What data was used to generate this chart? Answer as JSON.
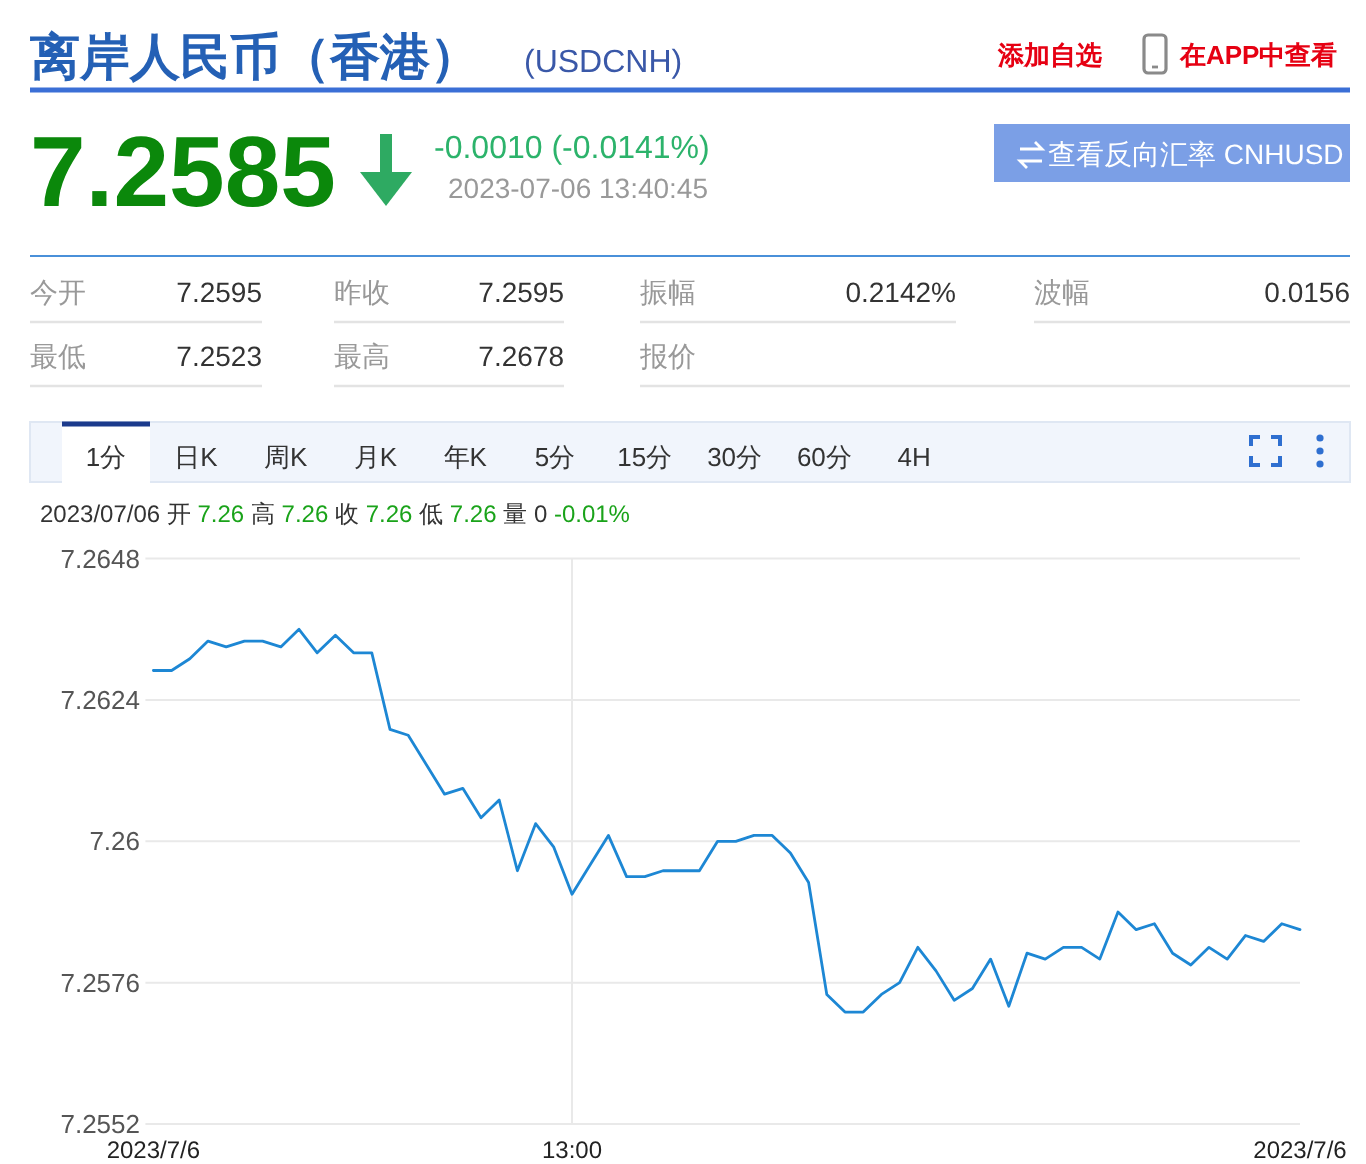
{
  "chart_data": [
    {
      "type": "other",
      "title": "离岸人民币（香港）",
      "subtitle": "(USDCNH)",
      "annotations": [
        "添加自选",
        "在APP中查看",
        "7.2585",
        "-0.0010 (-0.0141%)",
        "2023-07-06 13:40:45",
        "查看反向汇率 CNHUSD",
        "今开",
        "7.2595",
        "昨收",
        "7.2595",
        "振幅",
        "0.2142%",
        "波幅",
        "0.0156",
        "最低",
        "7.2523",
        "最高",
        "7.2678",
        "报价"
      ]
    },
    {
      "type": "line",
      "subtitle": "2023/07/06 开 7.26 高 7.26 收 7.26 低 7.26 量 0 -0.01%",
      "annotations": [
        "1分",
        "日K",
        "周K",
        "月K",
        "年K",
        "5分",
        "15分",
        "30分",
        "60分",
        "4H"
      ],
      "categories": [
        "2023/7/6",
        null,
        null,
        null,
        null,
        null,
        null,
        null,
        null,
        null,
        null,
        null,
        null,
        null,
        null,
        null,
        null,
        null,
        null,
        null,
        null,
        null,
        null,
        "13:00",
        null,
        null,
        null,
        null,
        null,
        null,
        null,
        null,
        null,
        null,
        null,
        null,
        null,
        null,
        null,
        null,
        null,
        null,
        null,
        null,
        null,
        null,
        null,
        null,
        null,
        null,
        null,
        null,
        null,
        null,
        null,
        null,
        null,
        null,
        null,
        null,
        null,
        null,
        null,
        "2023/7/6"
      ],
      "series": [
        {
          "color": "#1d87d4",
          "values": [
            7.2629,
            7.2629,
            7.2631,
            7.2634,
            7.2633,
            7.2634,
            7.2634,
            7.2633,
            7.2636,
            7.2632,
            7.2635,
            7.2632,
            7.2632,
            7.2619,
            7.2618,
            7.2613,
            7.2608,
            7.2609,
            7.2604,
            7.2607,
            7.2595,
            7.2603,
            7.2599,
            7.2591,
            7.2596,
            7.2601,
            7.2594,
            7.2594,
            7.2595,
            7.2595,
            7.2595,
            7.26,
            7.26,
            7.2601,
            7.2601,
            7.2598,
            7.2593,
            7.2574,
            7.2571,
            7.2571,
            7.2574,
            7.2576,
            7.2582,
            7.2578,
            7.2573,
            7.2575,
            7.258,
            7.2572,
            7.2581,
            7.258,
            7.2582,
            7.2582,
            7.258,
            7.2588,
            7.2585,
            7.2586,
            7.2581,
            7.2579,
            7.2582,
            7.258,
            7.2584,
            7.2583,
            7.2586,
            7.2585
          ]
        }
      ],
      "ylim": [
        7.2552,
        7.2648
      ],
      "yticks": [
        7.2552,
        7.2576,
        7.26,
        7.2624,
        7.2648
      ],
      "grid": true
    }
  ]
}
